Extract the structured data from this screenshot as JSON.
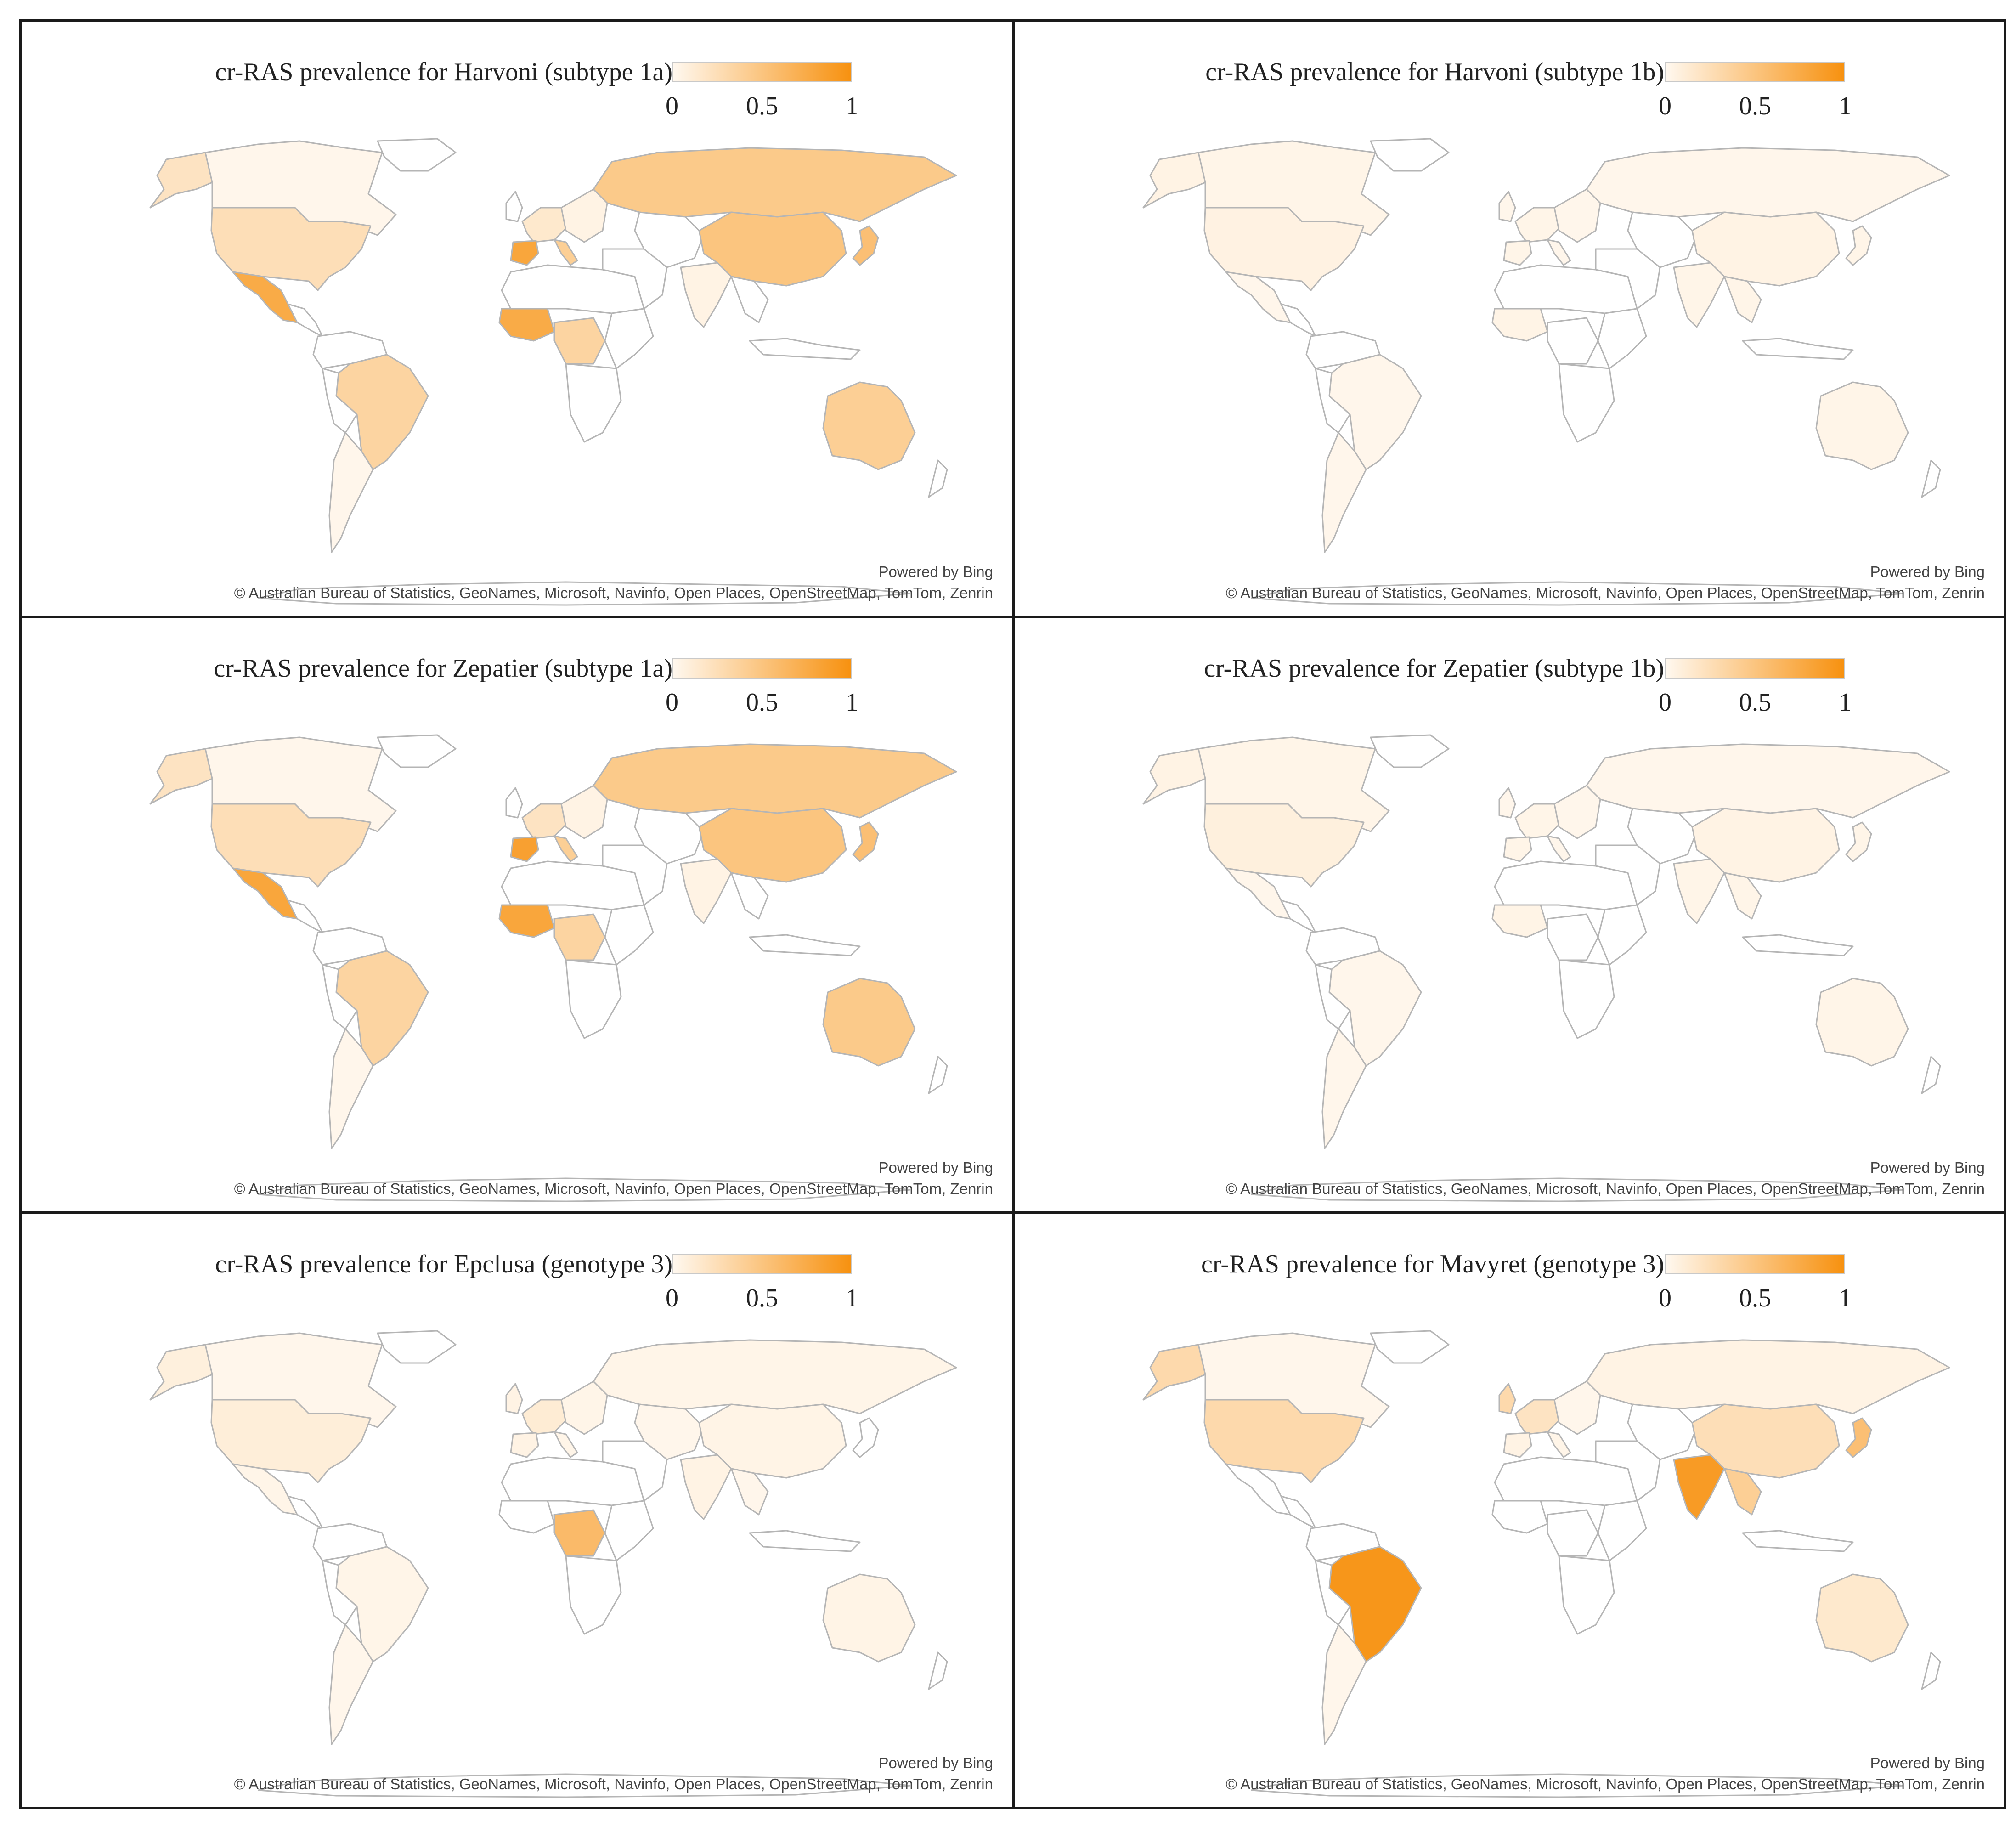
{
  "figure": {
    "border_color": "#1a1a1a",
    "colormap": {
      "low": "#fff8ef",
      "high": "#f7910f",
      "outline": "#b5b5b5",
      "empty": "#ffffff"
    },
    "powered_by": "Powered by Bing",
    "attribution": "© Australian Bureau of Statistics, GeoNames, Microsoft, Navinfo, Open Places, OpenStreetMap, TomTom, Zenrin"
  },
  "panels": [
    {
      "title": "cr-RAS prevalence for Harvoni (subtype 1a)",
      "legend": {
        "min": "0",
        "mid": "0.5",
        "max": "1"
      },
      "regions": {
        "alaska": 0.2,
        "canada": 0.02,
        "usa": 0.25,
        "mexico": 0.75,
        "central_america": 0,
        "south_america_north": 0,
        "brazil": 0.35,
        "south_america_south": 0,
        "argentina": 0.02,
        "greenland": 0,
        "uk": 0,
        "western_europe": 0.15,
        "spain": 0.8,
        "italy": 0.4,
        "eastern_europe": 0.05,
        "russia": 0.45,
        "north_africa": 0,
        "west_africa": 0.75,
        "central_africa": 0.35,
        "east_africa": 0,
        "southern_africa": 0,
        "middle_east": 0,
        "central_asia": 0,
        "india": 0.05,
        "china": 0.5,
        "southeast_asia": 0,
        "japan": 0.55,
        "indonesia": 0,
        "australia": 0.4,
        "new_zealand": 0
      }
    },
    {
      "title": "cr-RAS prevalence for Harvoni (subtype 1b)",
      "legend": {
        "min": "0",
        "mid": "0.5",
        "max": "1"
      },
      "regions": {
        "alaska": 0.05,
        "canada": 0.03,
        "usa": 0.06,
        "mexico": 0.02,
        "central_america": 0,
        "south_america_north": 0,
        "brazil": 0.02,
        "south_america_south": 0,
        "argentina": 0.02,
        "greenland": 0,
        "uk": 0.02,
        "western_europe": 0.03,
        "spain": 0.03,
        "italy": 0.02,
        "eastern_europe": 0.02,
        "russia": 0.02,
        "north_africa": 0,
        "west_africa": 0.04,
        "central_africa": 0,
        "east_africa": 0,
        "southern_africa": 0,
        "middle_east": 0,
        "central_asia": 0,
        "india": 0.03,
        "china": 0.05,
        "southeast_asia": 0.03,
        "japan": 0.03,
        "indonesia": 0,
        "australia": 0.03,
        "new_zealand": 0
      }
    },
    {
      "title": "cr-RAS prevalence for Zepatier (subtype 1a)",
      "legend": {
        "min": "0",
        "mid": "0.5",
        "max": "1"
      },
      "regions": {
        "alaska": 0.2,
        "canada": 0.02,
        "usa": 0.25,
        "mexico": 0.8,
        "central_america": 0,
        "south_america_north": 0,
        "brazil": 0.35,
        "south_america_south": 0,
        "argentina": 0.02,
        "greenland": 0,
        "uk": 0,
        "western_europe": 0.2,
        "spain": 0.85,
        "italy": 0.4,
        "eastern_europe": 0.05,
        "russia": 0.45,
        "north_africa": 0,
        "west_africa": 0.8,
        "central_africa": 0.35,
        "east_africa": 0,
        "southern_africa": 0,
        "middle_east": 0,
        "central_asia": 0,
        "india": 0.05,
        "china": 0.5,
        "southeast_asia": 0,
        "japan": 0.55,
        "indonesia": 0,
        "australia": 0.45,
        "new_zealand": 0
      }
    },
    {
      "title": "cr-RAS prevalence for Zepatier (subtype 1b)",
      "legend": {
        "min": "0",
        "mid": "0.5",
        "max": "1"
      },
      "regions": {
        "alaska": 0.05,
        "canada": 0.03,
        "usa": 0.08,
        "mexico": 0.02,
        "central_america": 0,
        "south_america_north": 0,
        "brazil": 0.02,
        "south_america_south": 0,
        "argentina": 0.02,
        "greenland": 0,
        "uk": 0.02,
        "western_europe": 0.03,
        "spain": 0.03,
        "italy": 0.02,
        "eastern_europe": 0.02,
        "russia": 0.02,
        "north_africa": 0,
        "west_africa": 0.04,
        "central_africa": 0,
        "east_africa": 0,
        "southern_africa": 0,
        "middle_east": 0,
        "central_asia": 0,
        "india": 0.03,
        "china": 0.05,
        "southeast_asia": 0.03,
        "japan": 0.03,
        "indonesia": 0,
        "australia": 0.03,
        "new_zealand": 0
      }
    },
    {
      "title": "cr-RAS prevalence for Epclusa (genotype 3)",
      "legend": {
        "min": "0",
        "mid": "0.5",
        "max": "1"
      },
      "regions": {
        "alaska": 0.08,
        "canada": 0.02,
        "usa": 0.1,
        "mexico": 0.03,
        "central_america": 0,
        "south_america_north": 0,
        "brazil": 0.03,
        "south_america_south": 0,
        "argentina": 0.02,
        "greenland": 0,
        "uk": 0.05,
        "western_europe": 0.12,
        "spain": 0.05,
        "italy": 0.03,
        "eastern_europe": 0.03,
        "russia": 0.03,
        "north_africa": 0,
        "west_africa": 0,
        "central_africa": 0.6,
        "east_africa": 0,
        "southern_africa": 0,
        "middle_east": 0,
        "central_asia": 0.02,
        "india": 0.05,
        "china": 0.04,
        "southeast_asia": 0.02,
        "japan": 0,
        "indonesia": 0,
        "australia": 0.04,
        "new_zealand": 0
      }
    },
    {
      "title": "cr-RAS prevalence for Mavyret (genotype 3)",
      "legend": {
        "min": "0",
        "mid": "0.5",
        "max": "1"
      },
      "regions": {
        "alaska": 0.3,
        "canada": 0.02,
        "usa": 0.3,
        "mexico": 0,
        "central_america": 0,
        "south_america_north": 0,
        "brazil": 0.95,
        "south_america_south": 0,
        "argentina": 0.02,
        "greenland": 0,
        "uk": 0.3,
        "western_europe": 0.2,
        "spain": 0.05,
        "italy": 0.03,
        "eastern_europe": 0.02,
        "russia": 0.05,
        "north_africa": 0,
        "west_africa": 0,
        "central_africa": 0,
        "east_africa": 0,
        "southern_africa": 0,
        "middle_east": 0,
        "central_asia": 0,
        "india": 0.9,
        "china": 0.25,
        "southeast_asia": 0.4,
        "japan": 0.55,
        "indonesia": 0,
        "australia": 0.15,
        "new_zealand": 0
      }
    }
  ]
}
